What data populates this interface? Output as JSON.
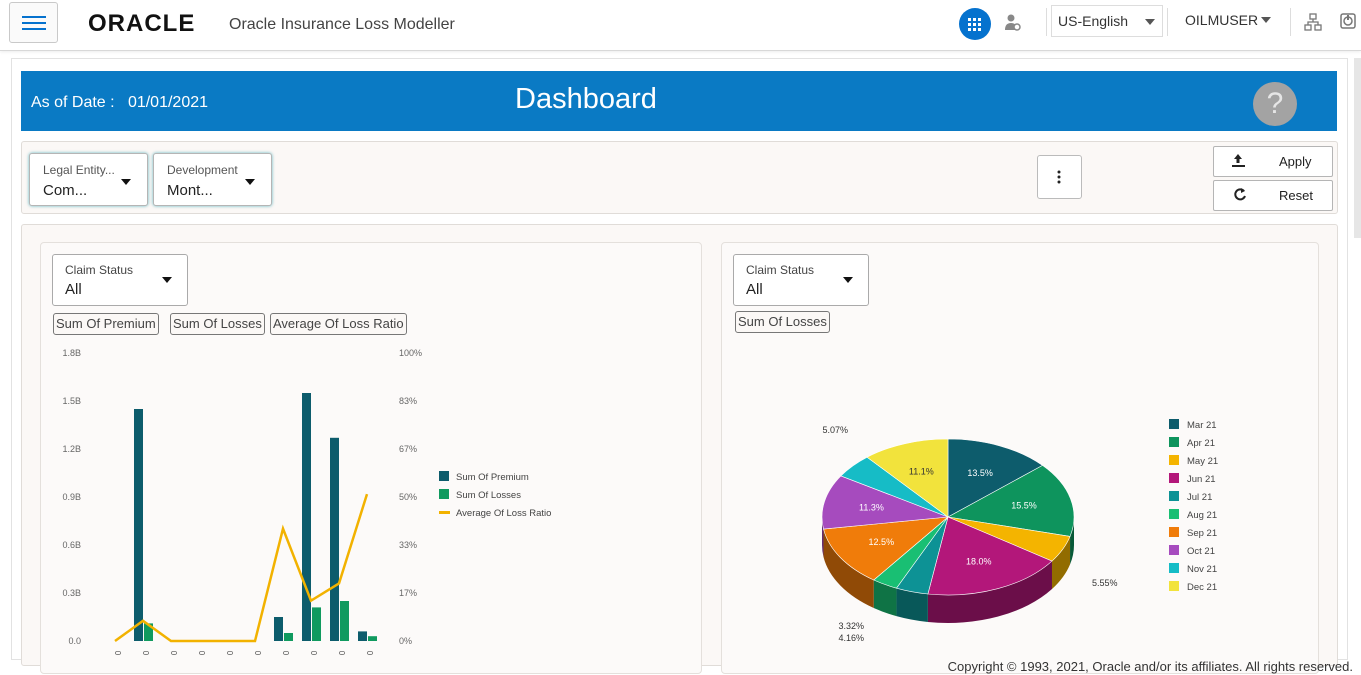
{
  "header": {
    "logo": "ORACLE",
    "app_name": "Oracle Insurance Loss Modeller",
    "language": "US-English",
    "user": "OILMUSER"
  },
  "banner": {
    "as_of_label": "As of Date :",
    "as_of_date": "01/01/2021",
    "title": "Dashboard",
    "help": "?"
  },
  "filters": [
    {
      "label": "Legal Entity...",
      "value": "Com..."
    },
    {
      "label": "Development",
      "value": "Mont..."
    }
  ],
  "actions": {
    "apply": "Apply",
    "reset": "Reset"
  },
  "left_panel": {
    "select_label": "Claim Status",
    "select_value": "All",
    "tags": [
      "Sum Of Premium",
      "Sum Of Losses",
      "Average Of Loss Ratio"
    ]
  },
  "right_panel": {
    "select_label": "Claim Status",
    "select_value": "All",
    "tags": [
      "Sum Of Losses"
    ]
  },
  "footer": "Copyright © 1993, 2021, Oracle and/or its affiliates. All rights reserved.",
  "chart_data": [
    {
      "type": "bar",
      "categories": [
        "0",
        "0",
        "0",
        "0",
        "0",
        "0",
        "0",
        "0",
        "0",
        "0"
      ],
      "y_ticks": [
        "1.8B",
        "1.5B",
        "1.2B",
        "0.9B",
        "0.6B",
        "0.3B",
        "0.0"
      ],
      "y2_ticks": [
        "100%",
        "83%",
        "67%",
        "50%",
        "33%",
        "17%",
        "0%"
      ],
      "ylim": [
        0,
        1.8
      ],
      "y2lim": [
        0,
        100
      ],
      "series": [
        {
          "name": "Sum Of Premium",
          "kind": "bar",
          "color": "#0d5c6c",
          "values": [
            0,
            1.45,
            0,
            0,
            0,
            0,
            0.15,
            1.55,
            1.27,
            0.06
          ]
        },
        {
          "name": "Sum Of Losses",
          "kind": "bar",
          "color": "#109a5f",
          "values": [
            0,
            0.11,
            0,
            0,
            0,
            0,
            0.05,
            0.21,
            0.25,
            0.03
          ]
        },
        {
          "name": "Average Of Loss Ratio",
          "kind": "line",
          "color": "#f2b200",
          "values": [
            0,
            7,
            0,
            0,
            0,
            0,
            39,
            14,
            20,
            51
          ]
        }
      ],
      "legend_position": "right"
    },
    {
      "type": "pie",
      "slices": [
        {
          "label": "Mar 21",
          "value": 13.5,
          "text": "13.5%",
          "color": "#0d5c6c"
        },
        {
          "label": "Apr 21",
          "value": 15.5,
          "text": "15.5%",
          "color": "#0e945d"
        },
        {
          "label": "May 21",
          "value": 5.55,
          "text": "5.55%",
          "color": "#f4b400"
        },
        {
          "label": "Jun 21",
          "value": 18.0,
          "text": "18.0%",
          "color": "#b3177a"
        },
        {
          "label": "Jul 21",
          "value": 4.16,
          "text": "4.16%",
          "color": "#0d9295"
        },
        {
          "label": "Aug 21",
          "value": 3.32,
          "text": "3.32%",
          "color": "#19bf73"
        },
        {
          "label": "Sep 21",
          "value": 12.5,
          "text": "12.5%",
          "color": "#f07c0a"
        },
        {
          "label": "Oct 21",
          "value": 11.3,
          "text": "11.3%",
          "color": "#a64bbe"
        },
        {
          "label": "Nov 21",
          "value": 5.07,
          "text": "5.07%",
          "color": "#16bcc6"
        },
        {
          "label": "Dec 21",
          "value": 11.1,
          "text": "11.1%",
          "color": "#f2e33c"
        }
      ],
      "legend_position": "right"
    }
  ]
}
